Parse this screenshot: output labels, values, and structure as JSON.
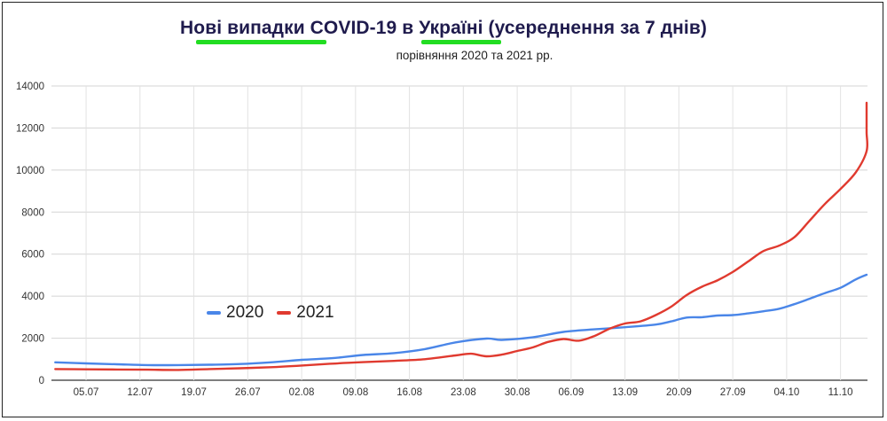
{
  "chart_data": {
    "type": "line",
    "title": "Нові випадки COVID-19 в Україні (усереднення за 7 днів)",
    "subtitle": "порівняння 2020 та 2021 рр.",
    "xlabel": "",
    "ylabel": "",
    "ylim": [
      0,
      14000
    ],
    "y_ticks": [
      0,
      2000,
      4000,
      6000,
      8000,
      10000,
      12000,
      14000
    ],
    "x_ticks": [
      "05.07",
      "12.07",
      "19.07",
      "26.07",
      "02.08",
      "09.08",
      "16.08",
      "23.08",
      "30.08",
      "06.09",
      "13.09",
      "20.09",
      "27.09",
      "04.10",
      "11.10"
    ],
    "x_tick_index": [
      4,
      11,
      18,
      25,
      32,
      39,
      46,
      53,
      60,
      67,
      74,
      81,
      88,
      95,
      102
    ],
    "x_count": 106,
    "grid": true,
    "legend_position": "bottom-left",
    "series": [
      {
        "name": "2020",
        "color": "#4a86e8",
        "points": [
          [
            0,
            850
          ],
          [
            4,
            800
          ],
          [
            8,
            760
          ],
          [
            12,
            720
          ],
          [
            16,
            720
          ],
          [
            20,
            740
          ],
          [
            24,
            770
          ],
          [
            28,
            850
          ],
          [
            32,
            970
          ],
          [
            36,
            1050
          ],
          [
            40,
            1200
          ],
          [
            44,
            1290
          ],
          [
            48,
            1480
          ],
          [
            52,
            1800
          ],
          [
            56,
            1980
          ],
          [
            58,
            1920
          ],
          [
            62,
            2040
          ],
          [
            66,
            2300
          ],
          [
            70,
            2420
          ],
          [
            74,
            2520
          ],
          [
            78,
            2650
          ],
          [
            80,
            2800
          ],
          [
            82,
            2980
          ],
          [
            84,
            3000
          ],
          [
            86,
            3080
          ],
          [
            88,
            3100
          ],
          [
            90,
            3180
          ],
          [
            92,
            3280
          ],
          [
            94,
            3400
          ],
          [
            96,
            3620
          ],
          [
            98,
            3880
          ],
          [
            100,
            4150
          ],
          [
            102,
            4400
          ],
          [
            104,
            4800
          ],
          [
            106,
            5020
          ]
        ]
      },
      {
        "name": "2021",
        "color": "#e03a2f",
        "points": [
          [
            0,
            530
          ],
          [
            4,
            520
          ],
          [
            8,
            510
          ],
          [
            12,
            500
          ],
          [
            16,
            490
          ],
          [
            20,
            530
          ],
          [
            24,
            570
          ],
          [
            28,
            620
          ],
          [
            32,
            700
          ],
          [
            36,
            790
          ],
          [
            40,
            860
          ],
          [
            44,
            920
          ],
          [
            48,
            1000
          ],
          [
            52,
            1180
          ],
          [
            54,
            1260
          ],
          [
            56,
            1140
          ],
          [
            58,
            1220
          ],
          [
            60,
            1390
          ],
          [
            62,
            1560
          ],
          [
            64,
            1820
          ],
          [
            66,
            1960
          ],
          [
            68,
            1880
          ],
          [
            70,
            2100
          ],
          [
            72,
            2450
          ],
          [
            74,
            2700
          ],
          [
            76,
            2800
          ],
          [
            78,
            3100
          ],
          [
            80,
            3500
          ],
          [
            82,
            4050
          ],
          [
            84,
            4450
          ],
          [
            86,
            4750
          ],
          [
            88,
            5150
          ],
          [
            90,
            5650
          ],
          [
            92,
            6150
          ],
          [
            94,
            6400
          ],
          [
            96,
            6800
          ],
          [
            98,
            7600
          ],
          [
            100,
            8400
          ],
          [
            102,
            9100
          ],
          [
            104,
            9900
          ],
          [
            106,
            10900
          ],
          [
            108,
            11800
          ],
          [
            110,
            12650
          ],
          [
            111,
            13200
          ]
        ]
      }
    ]
  }
}
